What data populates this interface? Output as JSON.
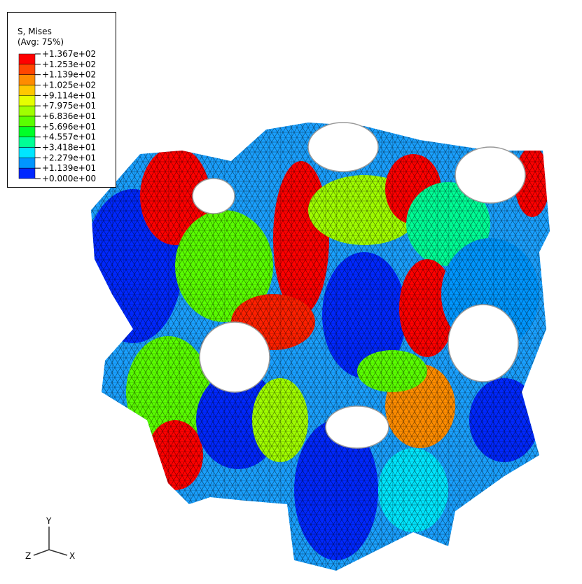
{
  "legend": {
    "title": "S, Mises",
    "subtitle": "(Avg: 75%)",
    "labels": [
      "+1.367e+02",
      "+1.253e+02",
      "+1.139e+02",
      "+1.025e+02",
      "+9.114e+01",
      "+7.975e+01",
      "+6.836e+01",
      "+5.696e+01",
      "+4.557e+01",
      "+3.418e+01",
      "+2.279e+01",
      "+1.139e+01",
      "+0.000e+00"
    ],
    "colors": [
      "#ff0000",
      "#ff4600",
      "#ff8c00",
      "#ffc800",
      "#e6ff00",
      "#a0ff00",
      "#5aff00",
      "#00ff28",
      "#00ff96",
      "#00e6ff",
      "#0096ff",
      "#0028ff"
    ]
  },
  "triad": {
    "y": "Y",
    "z": "Z",
    "x": "X"
  }
}
